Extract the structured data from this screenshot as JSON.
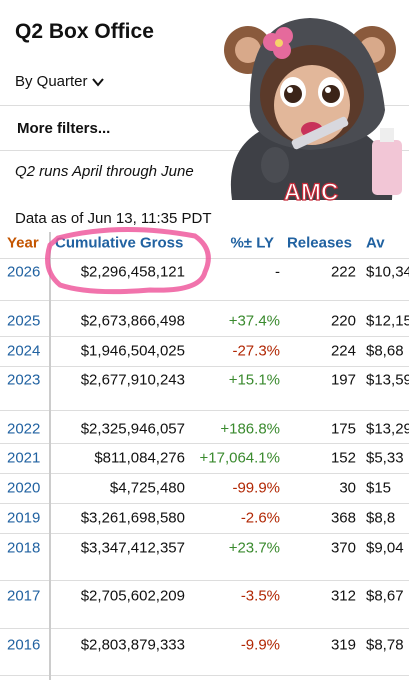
{
  "header": {
    "title": "Q2 Box Office"
  },
  "filters": {
    "quarter": "By Quarter",
    "more": "More filters..."
  },
  "note": "Q2 runs April through June",
  "data_as_of": "Data as of Jun 13, 11:35 PDT",
  "image": {
    "hoodie_text": "AMC"
  },
  "table": {
    "headers": [
      "Year",
      "Cumulative Gross",
      "%± LY",
      "Releases",
      "Av"
    ],
    "rows": [
      [
        "2026",
        "$2,296,458,121",
        "-",
        "222",
        "$10,34"
      ],
      [
        "2025",
        "$2,673,866,498",
        "+37.4%",
        "220",
        "$12,15"
      ],
      [
        "2024",
        "$1,946,504,025",
        "-27.3%",
        "224",
        "$8,68"
      ],
      [
        "2023",
        "$2,677,910,243",
        "+15.1%",
        "197",
        "$13,59"
      ],
      [
        "2022",
        "$2,325,946,057",
        "+186.8%",
        "175",
        "$13,29"
      ],
      [
        "2021",
        "$811,084,276",
        "+17,064.1%",
        "152",
        "$5,33"
      ],
      [
        "2020",
        "$4,725,480",
        "-99.9%",
        "30",
        "$15"
      ],
      [
        "2019",
        "$3,261,698,580",
        "-2.6%",
        "368",
        "$8,8"
      ],
      [
        "2018",
        "$3,347,412,357",
        "+23.7%",
        "370",
        "$9,04"
      ],
      [
        "2017",
        "$2,705,602,209",
        "-3.5%",
        "312",
        "$8,67"
      ],
      [
        "2016",
        "$2,803,879,333",
        "-9.9%",
        "319",
        "$8,78"
      ]
    ]
  }
}
